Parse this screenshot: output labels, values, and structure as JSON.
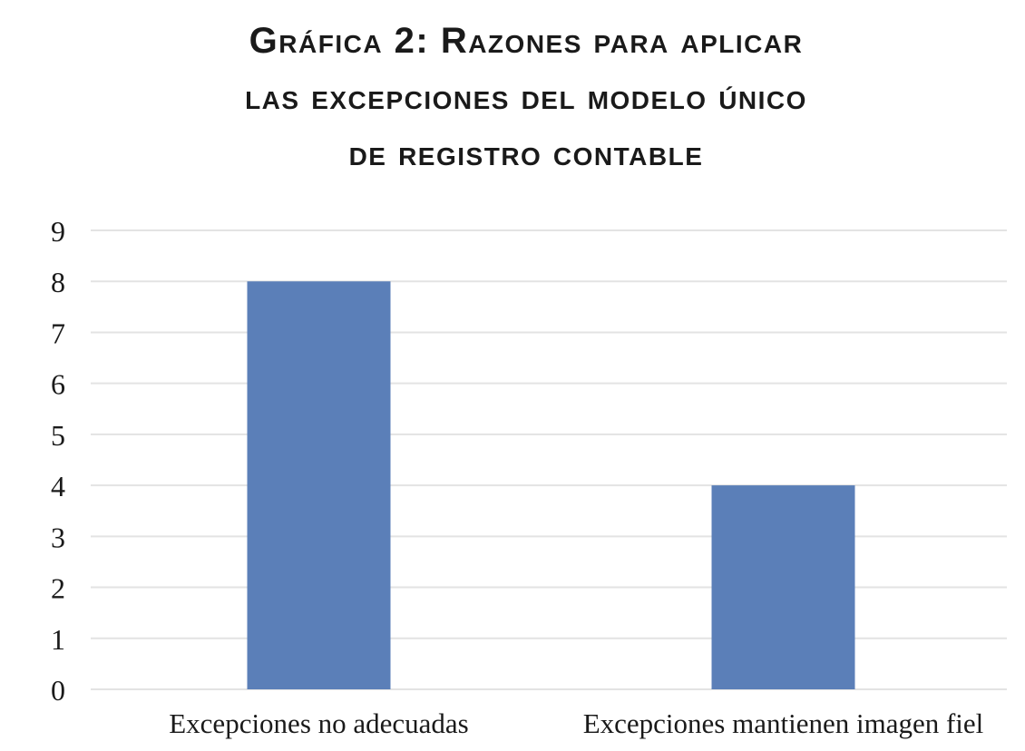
{
  "chart_data": {
    "type": "bar",
    "title_lines": [
      "Gráfica 2: Razones para aplicar",
      "las excepciones del modelo único",
      "de registro contable"
    ],
    "categories": [
      "Excepciones no adecuadas",
      "Excepciones mantienen imagen fiel"
    ],
    "values": [
      8,
      4
    ],
    "xlabel": "",
    "ylabel": "",
    "ylim": [
      0,
      9
    ],
    "yticks": [
      "0",
      "1",
      "2",
      "3",
      "4",
      "5",
      "6",
      "7",
      "8",
      "9"
    ],
    "grid": true,
    "legend": "none",
    "bar_color": "#5b7fb8",
    "grid_color": "#e3e3e3"
  }
}
